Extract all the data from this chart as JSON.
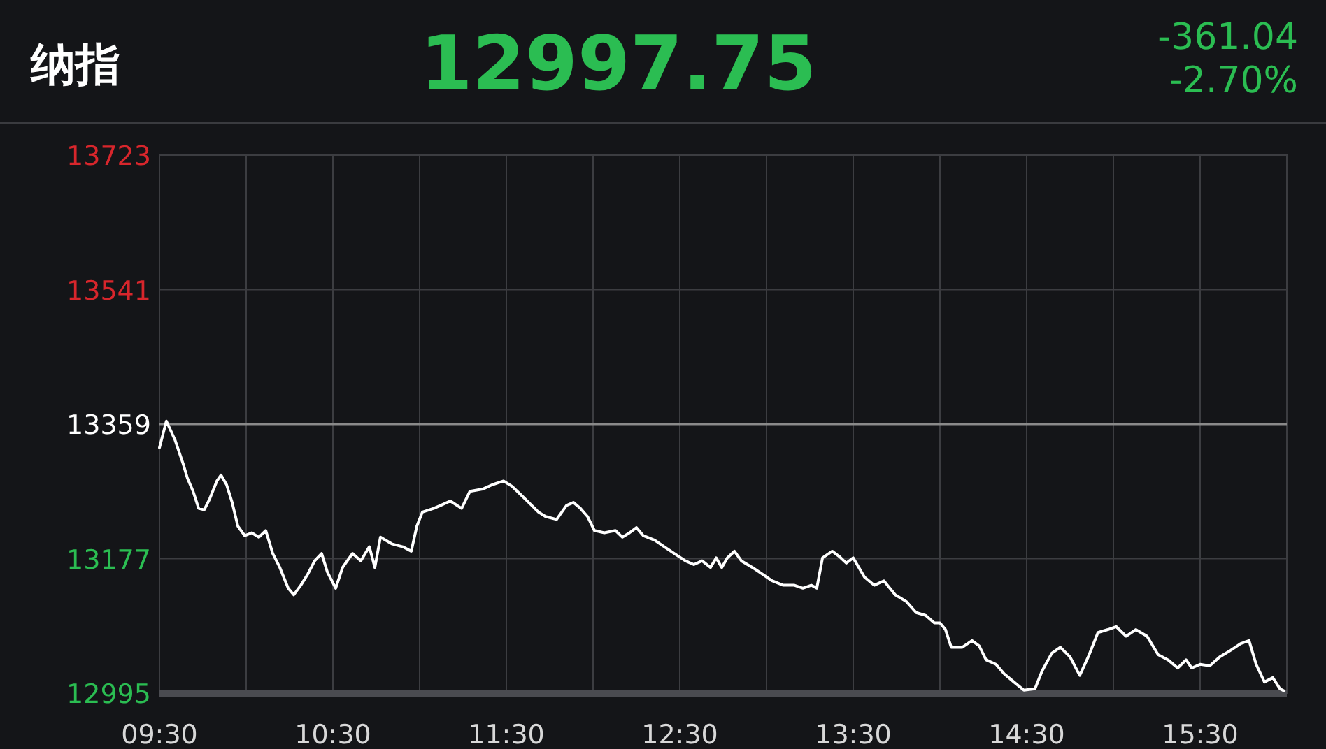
{
  "chart_data": {
    "type": "line",
    "title": "纳指",
    "annotations": [
      "12997.75",
      "-361.04",
      "-2.70%"
    ],
    "xlim": [
      9.5,
      16
    ],
    "xticks": [
      {
        "value": 9.5,
        "label": "09:30"
      },
      {
        "value": 10,
        "label": null
      },
      {
        "value": 10.5,
        "label": "10:30"
      },
      {
        "value": 11,
        "label": null
      },
      {
        "value": 11.5,
        "label": "11:30"
      },
      {
        "value": 12,
        "label": null
      },
      {
        "value": 12.5,
        "label": "12:30"
      },
      {
        "value": 13,
        "label": null
      },
      {
        "value": 13.5,
        "label": "13:30"
      },
      {
        "value": 14,
        "label": null
      },
      {
        "value": 14.5,
        "label": "14:30"
      },
      {
        "value": 15,
        "label": null
      },
      {
        "value": 15.5,
        "label": "15:30"
      },
      {
        "value": 16,
        "label": null
      }
    ],
    "ylim": [
      12995,
      13723
    ],
    "yticks": [
      12995,
      13177,
      13359,
      13541,
      13723
    ],
    "grid": true,
    "ref_lines": [
      {
        "axis": "y",
        "value": 13359,
        "color": "#8a8a8a"
      }
    ],
    "series": [
      {
        "color": "#ffffff",
        "x": [
          9.5,
          9.54,
          9.589,
          9.637,
          9.661,
          9.694,
          9.726,
          9.758,
          9.79,
          9.831,
          9.855,
          9.887,
          9.919,
          9.952,
          9.992,
          10.032,
          10.073,
          10.113,
          10.153,
          10.194,
          10.242,
          10.274,
          10.315,
          10.355,
          10.395,
          10.435,
          10.468,
          10.516,
          10.556,
          10.613,
          10.661,
          10.71,
          10.742,
          10.774,
          10.839,
          10.903,
          10.952,
          10.984,
          11.016,
          11.081,
          11.121,
          11.177,
          11.242,
          11.29,
          11.363,
          11.419,
          11.484,
          11.532,
          11.581,
          11.629,
          11.685,
          11.726,
          11.79,
          11.847,
          11.887,
          11.927,
          11.968,
          12.008,
          12.065,
          12.129,
          12.169,
          12.21,
          12.25,
          12.29,
          12.355,
          12.411,
          12.468,
          12.532,
          12.581,
          12.629,
          12.677,
          12.71,
          12.742,
          12.774,
          12.815,
          12.855,
          12.919,
          12.976,
          13.032,
          13.097,
          13.161,
          13.21,
          13.258,
          13.29,
          13.323,
          13.379,
          13.419,
          13.46,
          13.5,
          13.565,
          13.621,
          13.677,
          13.742,
          13.806,
          13.863,
          13.919,
          13.968,
          14.0,
          14.032,
          14.065,
          14.129,
          14.185,
          14.226,
          14.266,
          14.323,
          14.371,
          14.427,
          14.484,
          14.548,
          14.589,
          14.645,
          14.694,
          14.75,
          14.806,
          14.855,
          14.911,
          14.968,
          15.016,
          15.073,
          15.129,
          15.194,
          15.258,
          15.315,
          15.371,
          15.419,
          15.452,
          15.5,
          15.556,
          15.613,
          15.677,
          15.734,
          15.782,
          15.823,
          15.871,
          15.919,
          15.96,
          15.984
        ],
        "values": [
          13327,
          13363,
          13338,
          13305,
          13286,
          13268,
          13245,
          13243,
          13258,
          13282,
          13290,
          13277,
          13253,
          13221,
          13208,
          13212,
          13206,
          13215,
          13184,
          13165,
          13137,
          13128,
          13141,
          13156,
          13174,
          13184,
          13159,
          13137,
          13165,
          13184,
          13174,
          13193,
          13165,
          13206,
          13197,
          13193,
          13187,
          13221,
          13240,
          13245,
          13249,
          13255,
          13245,
          13268,
          13271,
          13277,
          13282,
          13275,
          13264,
          13253,
          13240,
          13234,
          13230,
          13249,
          13253,
          13245,
          13234,
          13215,
          13212,
          13215,
          13206,
          13212,
          13219,
          13208,
          13202,
          13193,
          13184,
          13174,
          13169,
          13174,
          13165,
          13178,
          13165,
          13178,
          13187,
          13174,
          13165,
          13156,
          13147,
          13141,
          13141,
          13137,
          13141,
          13137,
          13178,
          13187,
          13180,
          13171,
          13178,
          13152,
          13141,
          13147,
          13128,
          13119,
          13104,
          13100,
          13090,
          13090,
          13081,
          13057,
          13057,
          13066,
          13059,
          13040,
          13034,
          13021,
          13010,
          12999,
          13001,
          13025,
          13049,
          13057,
          13044,
          13019,
          13044,
          13077,
          13081,
          13085,
          13072,
          13081,
          13072,
          13047,
          13040,
          13029,
          13040,
          13029,
          13034,
          13032,
          13044,
          13053,
          13062,
          13066,
          13034,
          13010,
          13016,
          13001,
          12998
        ]
      }
    ]
  }
}
